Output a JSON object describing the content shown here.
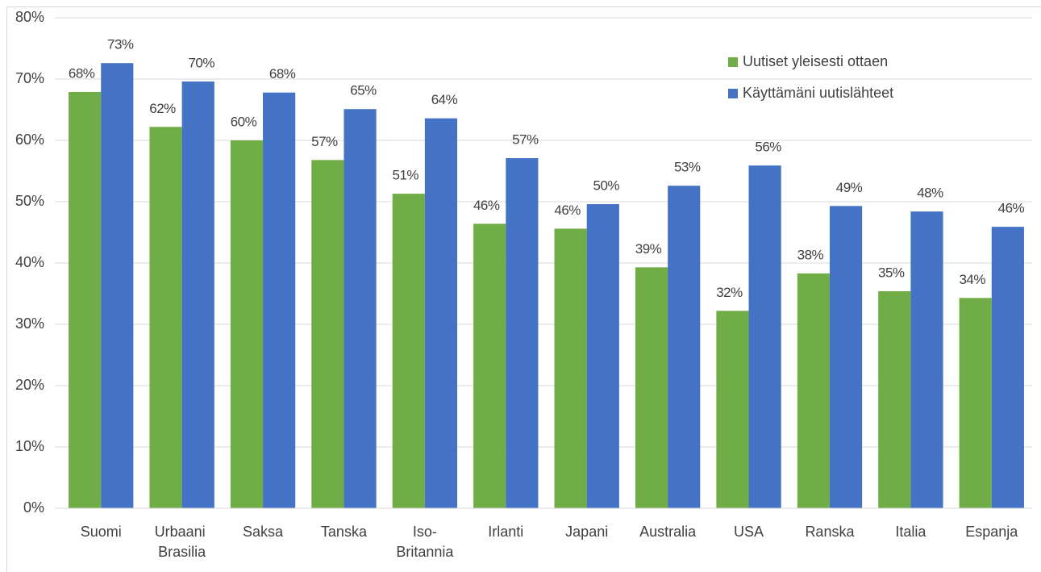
{
  "chart_data": {
    "type": "bar",
    "categories": [
      "Suomi",
      "Urbaani Brasilia",
      "Saksa",
      "Tanska",
      "Iso-Britannia",
      "Irlanti",
      "Japani",
      "Australia",
      "USA",
      "Ranska",
      "Italia",
      "Espanja"
    ],
    "series": [
      {
        "name": "Uutiset yleisesti ottaen",
        "color": "#70ad47",
        "values": [
          67.9,
          62.2,
          60.0,
          56.8,
          51.3,
          46.4,
          45.6,
          39.3,
          32.2,
          38.3,
          35.4,
          34.3
        ],
        "value_labels": [
          "68%",
          "62%",
          "60%",
          "57%",
          "51%",
          "46%",
          "46%",
          "39%",
          "32%",
          "38%",
          "35%",
          "34%"
        ]
      },
      {
        "name": "Käyttämäni uutislähteet",
        "color": "#4472c4",
        "values": [
          72.6,
          69.6,
          67.8,
          65.1,
          63.6,
          57.1,
          49.6,
          52.6,
          55.9,
          49.3,
          48.4,
          45.9
        ],
        "value_labels": [
          "73%",
          "70%",
          "68%",
          "65%",
          "64%",
          "57%",
          "50%",
          "53%",
          "56%",
          "49%",
          "48%",
          "46%"
        ]
      }
    ],
    "ylim": [
      0,
      80
    ],
    "yticks": [
      {
        "value": 0,
        "label": "0%"
      },
      {
        "value": 10,
        "label": "10%"
      },
      {
        "value": 20,
        "label": "20%"
      },
      {
        "value": 30,
        "label": "30%"
      },
      {
        "value": 40,
        "label": "40%"
      },
      {
        "value": 50,
        "label": "50%"
      },
      {
        "value": 60,
        "label": "60%"
      },
      {
        "value": 70,
        "label": "70%"
      },
      {
        "value": 80,
        "label": "80%"
      }
    ],
    "grid": true,
    "legend": "upper right"
  }
}
